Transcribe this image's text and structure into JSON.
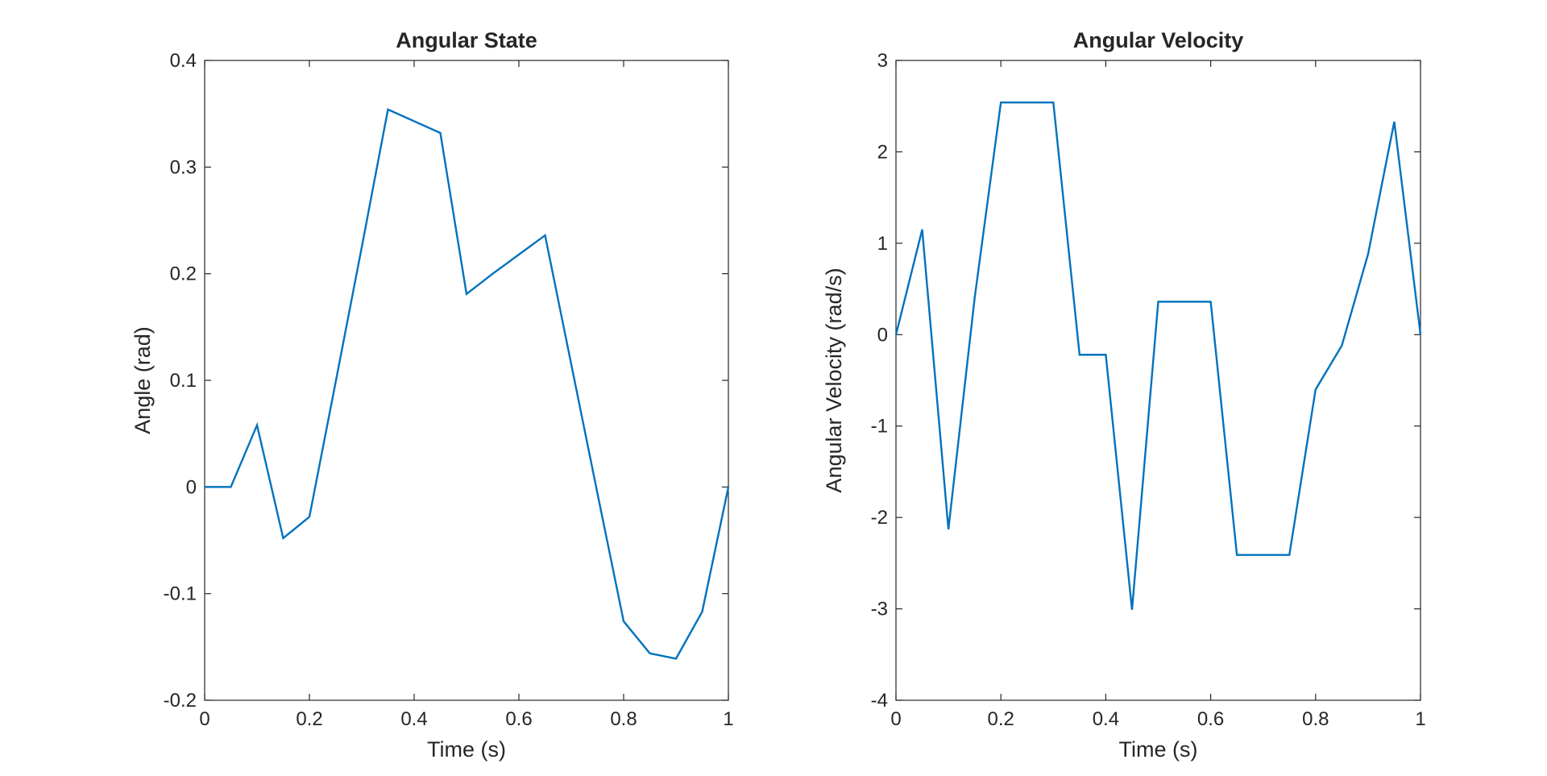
{
  "chart_data": [
    {
      "type": "line",
      "title": "Angular State",
      "xlabel": "Time (s)",
      "ylabel": "Angle (rad)",
      "xlim": [
        0,
        1
      ],
      "ylim": [
        -0.2,
        0.4
      ],
      "xticks": [
        0,
        0.2,
        0.4,
        0.6,
        0.8,
        1
      ],
      "xtick_labels": [
        "0",
        "0.2",
        "0.4",
        "0.6",
        "0.8",
        "1"
      ],
      "yticks": [
        -0.2,
        -0.1,
        0,
        0.1,
        0.2,
        0.3,
        0.4
      ],
      "ytick_labels": [
        "-0.2",
        "-0.1",
        "0",
        "0.1",
        "0.2",
        "0.3",
        "0.4"
      ],
      "grid": false,
      "line_color": "#0072BD",
      "series": [
        {
          "x": [
            0,
            0.05,
            0.1,
            0.15,
            0.2,
            0.25,
            0.3,
            0.35,
            0.4,
            0.45,
            0.5,
            0.55,
            0.6,
            0.65,
            0.7,
            0.75,
            0.8,
            0.85,
            0.9,
            0.95,
            1.0
          ],
          "values": [
            0,
            0,
            0.058,
            -0.048,
            -0.028,
            0.098,
            0.225,
            0.354,
            0.343,
            0.332,
            0.181,
            0.2,
            0.218,
            0.236,
            0.115,
            -0.006,
            -0.126,
            -0.156,
            -0.161,
            -0.117,
            0
          ]
        }
      ]
    },
    {
      "type": "line",
      "title": "Angular Velocity",
      "xlabel": "Time (s)",
      "ylabel": "Angular Velocity (rad/s)",
      "xlim": [
        0,
        1
      ],
      "ylim": [
        -4,
        3
      ],
      "xticks": [
        0,
        0.2,
        0.4,
        0.6,
        0.8,
        1
      ],
      "xtick_labels": [
        "0",
        "0.2",
        "0.4",
        "0.6",
        "0.8",
        "1"
      ],
      "yticks": [
        -4,
        -3,
        -2,
        -1,
        0,
        1,
        2,
        3
      ],
      "ytick_labels": [
        "-4",
        "-3",
        "-2",
        "-1",
        "0",
        "1",
        "2",
        "3"
      ],
      "grid": false,
      "line_color": "#0072BD",
      "series": [
        {
          "x": [
            0,
            0.05,
            0.1,
            0.15,
            0.2,
            0.25,
            0.3,
            0.35,
            0.4,
            0.45,
            0.5,
            0.55,
            0.6,
            0.65,
            0.7,
            0.75,
            0.8,
            0.85,
            0.9,
            0.95,
            1.0
          ],
          "values": [
            0,
            1.15,
            -2.13,
            0.4,
            2.54,
            2.54,
            2.54,
            -0.22,
            -0.22,
            -3.01,
            0.36,
            0.36,
            0.36,
            -2.41,
            -2.41,
            -2.41,
            -0.6,
            -0.12,
            0.88,
            2.33,
            0
          ]
        }
      ]
    }
  ]
}
